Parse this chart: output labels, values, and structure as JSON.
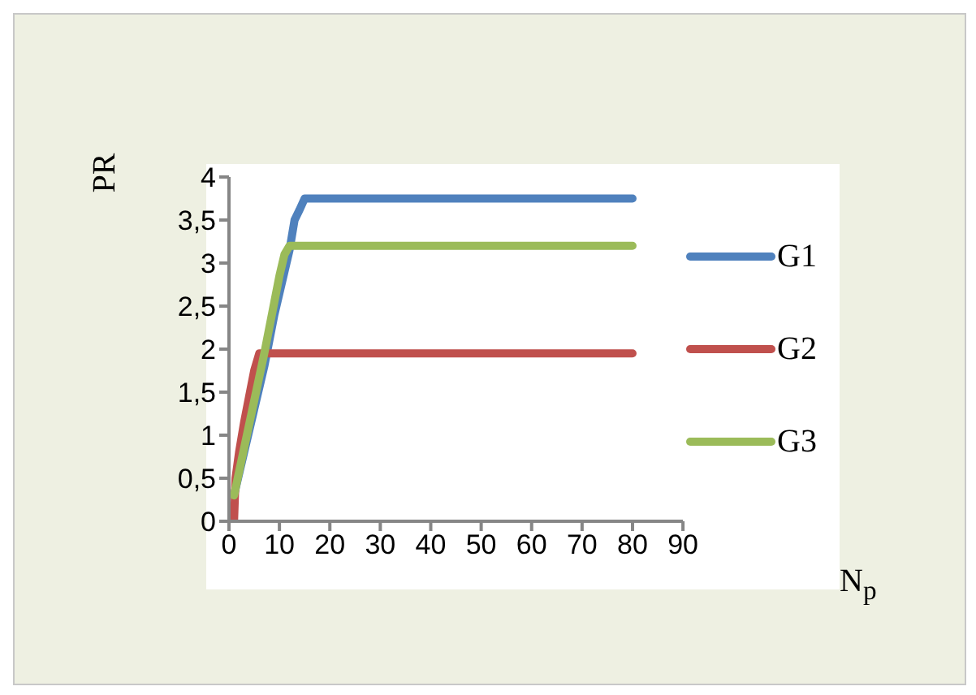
{
  "chart_data": {
    "type": "line",
    "xlabel": "N$_{p}$",
    "ylabel": "PR",
    "series": [
      {
        "name": "G1",
        "color": "#4f81bd",
        "x": [
          1,
          3,
          5,
          7,
          9,
          11,
          12,
          13,
          14,
          15,
          80
        ],
        "values": [
          0.3,
          0.8,
          1.3,
          1.8,
          2.4,
          2.9,
          3.15,
          3.5,
          3.62,
          3.75,
          3.75
        ]
      },
      {
        "name": "G2",
        "color": "#c0504d",
        "x": [
          1,
          1.3,
          2,
          3,
          4,
          5,
          6,
          80
        ],
        "values": [
          0,
          0.5,
          0.8,
          1.15,
          1.45,
          1.75,
          1.95,
          1.95
        ]
      },
      {
        "name": "G3",
        "color": "#9bbb59",
        "x": [
          1,
          3,
          5,
          7,
          9,
          10,
          11,
          12,
          80
        ],
        "values": [
          0.3,
          0.85,
          1.4,
          1.95,
          2.55,
          2.85,
          3.1,
          3.2,
          3.2
        ]
      }
    ],
    "xlim": [
      0,
      90
    ],
    "xticks": [
      0,
      10,
      20,
      30,
      40,
      50,
      60,
      70,
      80,
      90
    ],
    "ylim": [
      0,
      4
    ],
    "yticks": [
      0,
      {
        "value": 0.5,
        "label": "0,5"
      },
      1,
      {
        "value": 1.5,
        "label": "1,5"
      },
      2,
      {
        "value": 2.5,
        "label": "2,5"
      },
      3,
      {
        "value": 3.5,
        "label": "3,5"
      },
      4
    ],
    "grid": false,
    "legend": "right",
    "marker": "none",
    "line_style": "solid"
  }
}
